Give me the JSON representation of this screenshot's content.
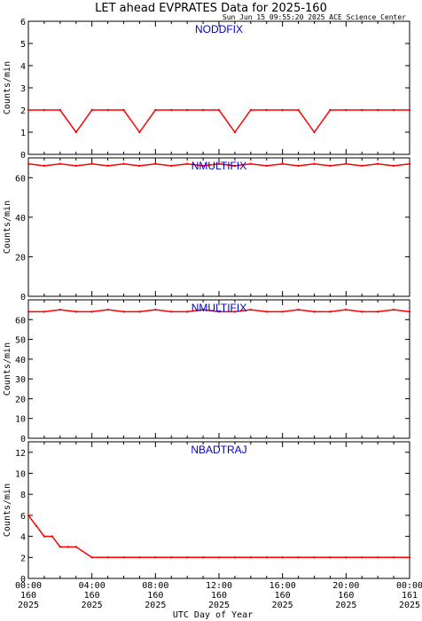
{
  "title": "LET ahead EVPRATES Data for 2025-160",
  "timestamp": "Sun Jun 15 09:55:20 2025 ACE Science Center",
  "xlabel": "UTC Day of Year",
  "colors": {
    "series": "#ff0000",
    "panel_title": "#0000cc",
    "axes": "#000000"
  },
  "x_ticks": [
    {
      "time": "00:00",
      "doy": "160",
      "year": "2025"
    },
    {
      "time": "04:00",
      "doy": "160",
      "year": "2025"
    },
    {
      "time": "08:00",
      "doy": "160",
      "year": "2025"
    },
    {
      "time": "12:00",
      "doy": "160",
      "year": "2025"
    },
    {
      "time": "16:00",
      "doy": "160",
      "year": "2025"
    },
    {
      "time": "20:00",
      "doy": "160",
      "year": "2025"
    },
    {
      "time": "00:00",
      "doy": "161",
      "year": "2025"
    }
  ],
  "chart_data": [
    {
      "type": "line",
      "title": "NODDFIX",
      "ylabel": "Counts/min",
      "xlim": [
        0,
        24
      ],
      "ylim": [
        0,
        6
      ],
      "yticks": [
        0,
        1,
        2,
        3,
        4,
        5,
        6
      ],
      "series": [
        {
          "x": [
            0,
            1,
            2,
            3,
            4,
            5,
            6,
            7,
            8,
            9,
            10,
            11,
            12,
            13,
            14,
            15,
            16,
            17,
            18,
            19,
            20,
            21,
            22,
            23,
            24
          ],
          "values": [
            2,
            2,
            2,
            1,
            2,
            2,
            2,
            1,
            2,
            2,
            2,
            2,
            2,
            1,
            2,
            2,
            2,
            2,
            1,
            2,
            2,
            2,
            2,
            2,
            2
          ]
        }
      ]
    },
    {
      "type": "line",
      "title": "NMULTIFIX",
      "ylabel": "Counts/min",
      "xlim": [
        0,
        24
      ],
      "ylim": [
        0,
        70
      ],
      "yticks": [
        0,
        20,
        40,
        60
      ],
      "series": [
        {
          "x": [
            0,
            1,
            2,
            3,
            4,
            5,
            6,
            7,
            8,
            9,
            10,
            11,
            12,
            13,
            14,
            15,
            16,
            17,
            18,
            19,
            20,
            21,
            22,
            23,
            24
          ],
          "values": [
            67,
            66,
            67,
            66,
            67,
            66,
            67,
            66,
            67,
            66,
            67,
            66,
            67,
            66,
            67,
            66,
            67,
            66,
            67,
            66,
            67,
            66,
            67,
            66,
            67
          ]
        }
      ]
    },
    {
      "type": "line",
      "title": "NMULTIFIX",
      "ylabel": "Counts/min",
      "xlim": [
        0,
        24
      ],
      "ylim": [
        0,
        70
      ],
      "yticks": [
        0,
        10,
        20,
        30,
        40,
        50,
        60
      ],
      "series": [
        {
          "x": [
            0,
            1,
            2,
            3,
            4,
            5,
            6,
            7,
            8,
            9,
            10,
            11,
            12,
            13,
            14,
            15,
            16,
            17,
            18,
            19,
            20,
            21,
            22,
            23,
            24
          ],
          "values": [
            64,
            64,
            65,
            64,
            64,
            65,
            64,
            64,
            65,
            64,
            64,
            65,
            64,
            64,
            65,
            64,
            64,
            65,
            64,
            64,
            65,
            64,
            64,
            65,
            64
          ]
        }
      ]
    },
    {
      "type": "line",
      "title": "NBADTRAJ",
      "ylabel": "Counts/min",
      "xlim": [
        0,
        24
      ],
      "ylim": [
        0,
        13
      ],
      "yticks": [
        0,
        2,
        4,
        6,
        8,
        10,
        12
      ],
      "series": [
        {
          "x": [
            0,
            0.5,
            1,
            1.5,
            2,
            2.5,
            3,
            4,
            5,
            6,
            7,
            8,
            9,
            10,
            11,
            12,
            13,
            14,
            15,
            16,
            17,
            18,
            19,
            20,
            21,
            22,
            23,
            24
          ],
          "values": [
            6,
            5,
            4,
            4,
            3,
            3,
            3,
            2,
            2,
            2,
            2,
            2,
            2,
            2,
            2,
            2,
            2,
            2,
            2,
            2,
            2,
            2,
            2,
            2,
            2,
            2,
            2,
            2
          ]
        }
      ]
    }
  ]
}
